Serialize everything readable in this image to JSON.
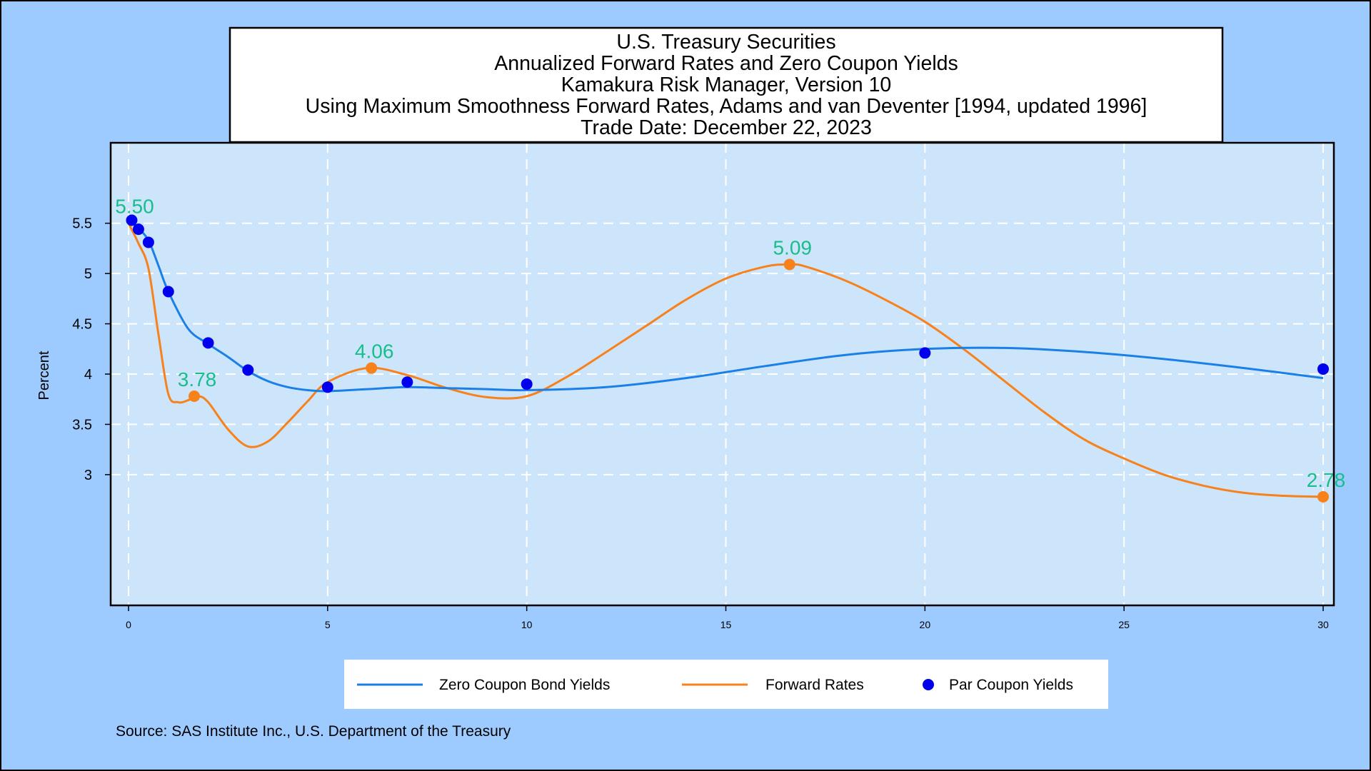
{
  "colors": {
    "outer_background": "#9ecbff",
    "plot_background": "#cce5fb",
    "zero_coupon_line": "#1a80e8",
    "forward_line": "#f7821b",
    "par_marker": "#0000ee",
    "forward_marker": "#f7821b",
    "annotation_text": "#19bd8a",
    "grid": "#ffffff"
  },
  "chart_data": {
    "type": "line",
    "title_lines": [
      "U.S. Treasury Securities",
      "Annualized Forward Rates and Zero Coupon Yields",
      "Kamakura Risk Manager, Version 10",
      "Using Maximum Smoothness Forward Rates, Adams and van Deventer [1994, updated 1996]",
      "Trade Date:  December 22, 2023"
    ],
    "xlabel": "",
    "ylabel": "Percent",
    "xlim": [
      0,
      30
    ],
    "ylim": [
      1.7,
      6.3
    ],
    "x_ticks": [
      0,
      5,
      10,
      15,
      20,
      25,
      30
    ],
    "y_ticks": [
      3,
      3.5,
      4,
      4.5,
      5,
      5.5
    ],
    "y_tick_labels": [
      "3",
      "3.5",
      "4",
      "4.5",
      "5",
      "5.5"
    ],
    "grid": true,
    "legend_position": "bottom",
    "series": [
      {
        "name": "Zero Coupon Bond Yields",
        "style": "line",
        "x": [
          0.08,
          0.25,
          0.5,
          0.75,
          1,
          1.5,
          2,
          2.5,
          3,
          3.5,
          4,
          4.5,
          5,
          6,
          7,
          8,
          9,
          10,
          12,
          14,
          16,
          18,
          20,
          22,
          24,
          26,
          28,
          30
        ],
        "y": [
          5.5,
          5.45,
          5.33,
          5.08,
          4.82,
          4.45,
          4.3,
          4.17,
          4.03,
          3.93,
          3.87,
          3.84,
          3.83,
          3.85,
          3.87,
          3.86,
          3.85,
          3.84,
          3.87,
          3.96,
          4.08,
          4.19,
          4.25,
          4.26,
          4.22,
          4.15,
          4.06,
          3.96
        ]
      },
      {
        "name": "Forward Rates",
        "style": "line",
        "x": [
          0,
          0.25,
          0.5,
          0.75,
          1,
          1.25,
          1.5,
          1.75,
          2,
          2.5,
          3,
          3.5,
          4,
          4.5,
          5,
          6,
          7,
          8,
          9,
          10,
          11,
          12,
          13,
          14,
          15,
          16,
          16.6,
          17,
          18,
          19,
          20,
          21,
          22,
          23,
          24,
          25,
          26,
          27,
          28,
          29,
          30
        ],
        "y": [
          5.5,
          5.3,
          5.05,
          4.4,
          3.8,
          3.72,
          3.74,
          3.78,
          3.72,
          3.45,
          3.28,
          3.33,
          3.52,
          3.73,
          3.92,
          4.06,
          3.99,
          3.86,
          3.77,
          3.78,
          3.97,
          4.22,
          4.48,
          4.74,
          4.95,
          5.07,
          5.09,
          5.07,
          4.93,
          4.74,
          4.52,
          4.24,
          3.93,
          3.62,
          3.35,
          3.16,
          3.0,
          2.89,
          2.82,
          2.79,
          2.78
        ]
      },
      {
        "name": "Par Coupon Yields",
        "style": "markers",
        "x": [
          0.08,
          0.25,
          0.5,
          1,
          2,
          3,
          5,
          7,
          10,
          20,
          30
        ],
        "y": [
          5.53,
          5.44,
          5.31,
          4.82,
          4.31,
          4.04,
          3.87,
          3.92,
          3.9,
          4.21,
          4.05
        ]
      }
    ],
    "forward_highlight_points": {
      "x": [
        1.65,
        6.1,
        16.6,
        30
      ],
      "y": [
        3.78,
        4.06,
        5.09,
        2.78
      ]
    },
    "annotations": [
      {
        "text": "5.50",
        "x": 0.08,
        "y": 5.5
      },
      {
        "text": "3.78",
        "x": 1.65,
        "y": 3.78
      },
      {
        "text": "4.06",
        "x": 6.1,
        "y": 4.06
      },
      {
        "text": "5.09",
        "x": 16.6,
        "y": 5.09
      },
      {
        "text": "2.78",
        "x": 30,
        "y": 2.78
      }
    ]
  },
  "legend": {
    "items": [
      {
        "label": "Zero Coupon Bond Yields",
        "kind": "line"
      },
      {
        "label": "Forward Rates",
        "kind": "line"
      },
      {
        "label": "Par Coupon Yields",
        "kind": "marker"
      }
    ]
  },
  "source": "Source: SAS Institute Inc., U.S. Department of the Treasury"
}
